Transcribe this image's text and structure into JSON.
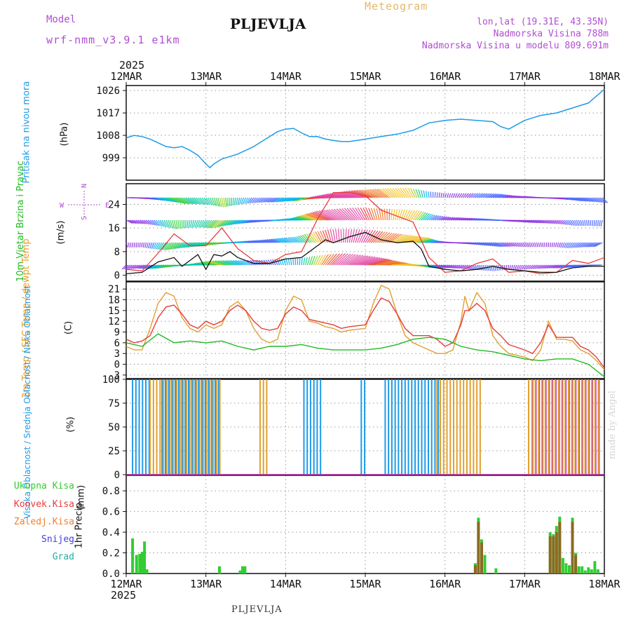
{
  "header": {
    "title": "PLJEVLJA",
    "subtitle": "Meteogram",
    "model_label": "Model",
    "model_value": "wrf-nmm_v3.9.1 e1km",
    "location_lines": [
      "lon,lat (19.31E, 43.35N)",
      "Nadmorska Visina 788m",
      "Nadmorska Visina u modelu 809.691m"
    ],
    "year_top": "2025",
    "year_bottom": "2025",
    "footer": "PLJEVLJA",
    "watermark": "made by Angel"
  },
  "wind_compass": {
    "n": "N",
    "s": "S",
    "e": "E",
    "w": "W"
  },
  "colors": {
    "pressure": "#1e9be8",
    "wind_speed": "#111111",
    "gust": "#e83c3c",
    "temp2m": "#e83c3c",
    "sfc_temp": "#e0a030",
    "dewpt": "#22bb22",
    "cloud_high": "#1e9be8",
    "cloud_mid": "#e0a030",
    "cloud_low": "#c030b0",
    "precip_total": "#33cc33",
    "precip_conv": "#e83c3c",
    "precip_frozen": "#f08030",
    "precip_snow": "#4040e0",
    "precip_hail": "#20b0a0",
    "axis_label_purple": "#b04ed0"
  },
  "chart_data": [
    {
      "type": "line",
      "panel": "pressure",
      "ylabel": "Pritisak na nivou mora",
      "unit": "(hPa)",
      "x_ticks": [
        "12MAR",
        "13MAR",
        "14MAR",
        "15MAR",
        "16MAR",
        "17MAR",
        "18MAR"
      ],
      "ylim": [
        990,
        1028
      ],
      "y_ticks": [
        999,
        1008,
        1017,
        1026
      ],
      "series": [
        {
          "x": [
            0,
            0.1,
            0.2,
            0.3,
            0.4,
            0.5,
            0.6,
            0.7,
            0.8,
            0.9,
            1.0,
            1.05,
            1.1,
            1.2,
            1.3,
            1.4,
            1.5,
            1.6,
            1.7,
            1.8,
            1.9,
            2.0,
            2.1,
            2.2,
            2.3,
            2.4,
            2.5,
            2.6,
            2.7,
            2.8,
            2.9,
            3.0,
            3.2,
            3.4,
            3.6,
            3.8,
            4.0,
            4.2,
            4.4,
            4.6,
            4.7,
            4.8,
            5.0,
            5.2,
            5.4,
            5.6,
            5.8,
            6.0
          ],
          "y": [
            1007.0,
            1008.0,
            1007.5,
            1006.5,
            1005.0,
            1003.5,
            1003.0,
            1003.5,
            1002.0,
            1000.0,
            996.5,
            995.0,
            996.5,
            998.5,
            999.5,
            1000.5,
            1002.0,
            1003.5,
            1005.5,
            1007.5,
            1009.5,
            1010.5,
            1010.8,
            1009.0,
            1007.5,
            1007.5,
            1006.5,
            1006.0,
            1005.5,
            1005.5,
            1006.0,
            1006.5,
            1007.5,
            1008.5,
            1010.0,
            1013.0,
            1014.0,
            1014.5,
            1014.0,
            1013.5,
            1011.5,
            1010.5,
            1014.0,
            1016.0,
            1017.0,
            1019.0,
            1021.0,
            1026.5
          ]
        }
      ]
    },
    {
      "type": "line",
      "panel": "wind",
      "ylabel": "10m Vjetar Brzina i Pravac",
      "unit": "(m/s)",
      "ylim": [
        -2,
        31
      ],
      "y_ticks": [
        0,
        8,
        16,
        24
      ],
      "series": [
        {
          "name": "speed",
          "x": [
            0,
            0.2,
            0.4,
            0.6,
            0.7,
            0.8,
            0.9,
            1.0,
            1.1,
            1.2,
            1.3,
            1.4,
            1.6,
            1.8,
            2.0,
            2.2,
            2.4,
            2.5,
            2.6,
            2.8,
            3.0,
            3.2,
            3.4,
            3.6,
            3.7,
            3.8,
            4.0,
            4.2,
            4.4,
            4.6,
            4.8,
            5.0,
            5.2,
            5.4,
            5.6,
            5.8,
            6.0
          ],
          "y": [
            0.5,
            1.0,
            4.5,
            6.0,
            3.0,
            5.0,
            7.0,
            2.0,
            7.0,
            6.5,
            8.0,
            6.0,
            4.0,
            4.0,
            5.5,
            6.0,
            10.0,
            12.0,
            11.0,
            13.0,
            14.5,
            12.0,
            11.0,
            11.5,
            9.0,
            3.0,
            2.0,
            1.5,
            2.0,
            3.0,
            2.0,
            1.5,
            1.0,
            1.0,
            2.5,
            3.0,
            3.0
          ]
        },
        {
          "name": "gust",
          "x": [
            0,
            0.2,
            0.4,
            0.6,
            0.8,
            1.0,
            1.2,
            1.4,
            1.6,
            1.8,
            2.0,
            2.2,
            2.4,
            2.6,
            2.8,
            3.0,
            3.2,
            3.4,
            3.6,
            3.8,
            4.0,
            4.2,
            4.4,
            4.6,
            4.8,
            5.0,
            5.2,
            5.4,
            5.6,
            5.8,
            6.0
          ],
          "y": [
            2.0,
            1.5,
            7.5,
            14.0,
            10.0,
            10.0,
            16.0,
            9.0,
            5.0,
            4.0,
            7.0,
            8.0,
            19.0,
            28.0,
            28.0,
            27.0,
            22.0,
            20.0,
            18.0,
            6.0,
            1.0,
            1.5,
            4.0,
            5.5,
            1.0,
            1.5,
            0.5,
            1.0,
            5.0,
            4.0,
            6.0
          ]
        }
      ]
    },
    {
      "type": "line",
      "panel": "temperature",
      "ylabel": "2m Temp / SFC Temp / dewpt Temp",
      "unit": "(C)",
      "ylim": [
        -4,
        23
      ],
      "y_ticks": [
        -3,
        0,
        3,
        6,
        9,
        12,
        15,
        18,
        21
      ],
      "series": [
        {
          "name": "2m Temp",
          "x": [
            0,
            0.1,
            0.2,
            0.3,
            0.4,
            0.5,
            0.6,
            0.7,
            0.8,
            0.9,
            1.0,
            1.1,
            1.2,
            1.3,
            1.4,
            1.5,
            1.6,
            1.7,
            1.8,
            1.9,
            2.0,
            2.1,
            2.2,
            2.3,
            2.4,
            2.5,
            2.6,
            2.7,
            2.8,
            3.0,
            3.1,
            3.2,
            3.3,
            3.4,
            3.5,
            3.6,
            3.7,
            3.8,
            3.9,
            4.0,
            4.1,
            4.2,
            4.25,
            4.3,
            4.4,
            4.5,
            4.6,
            4.7,
            4.8,
            5.0,
            5.1,
            5.2,
            5.3,
            5.4,
            5.5,
            5.6,
            5.7,
            5.8,
            5.9,
            6.0
          ],
          "y": [
            7,
            6,
            6.5,
            8,
            13,
            16,
            16.5,
            14,
            11,
            10,
            12,
            11,
            12,
            15,
            16.5,
            15,
            12,
            10,
            9.5,
            10,
            14,
            16,
            15,
            12.5,
            12,
            11.5,
            11,
            10,
            10.5,
            11,
            15,
            18.5,
            17.5,
            14,
            10,
            8,
            8,
            8,
            7,
            5,
            6,
            11,
            15,
            15,
            17,
            15,
            10,
            8,
            5.5,
            4,
            3,
            6,
            11,
            7.5,
            7.5,
            7.5,
            5,
            4,
            2,
            -1
          ]
        },
        {
          "name": "SFC Temp",
          "x": [
            0,
            0.1,
            0.2,
            0.3,
            0.4,
            0.5,
            0.6,
            0.7,
            0.8,
            0.9,
            1.0,
            1.1,
            1.2,
            1.3,
            1.4,
            1.5,
            1.6,
            1.7,
            1.8,
            1.9,
            2.0,
            2.1,
            2.2,
            2.3,
            2.4,
            2.5,
            2.6,
            2.7,
            2.8,
            3.0,
            3.1,
            3.2,
            3.3,
            3.4,
            3.5,
            3.6,
            3.7,
            3.8,
            3.9,
            4.0,
            4.1,
            4.2,
            4.25,
            4.3,
            4.4,
            4.5,
            4.6,
            4.7,
            4.8,
            5.0,
            5.1,
            5.2,
            5.3,
            5.4,
            5.5,
            5.6,
            5.7,
            5.8,
            5.9,
            6.0
          ],
          "y": [
            5,
            4,
            4,
            10,
            17,
            20,
            19,
            13,
            10,
            9,
            11,
            10,
            11,
            16,
            17.5,
            15,
            10,
            7,
            6,
            7,
            15,
            19,
            18,
            12,
            11.5,
            10.5,
            10,
            9,
            9.5,
            10,
            17,
            22,
            21,
            14,
            8,
            6,
            5,
            4,
            3,
            3,
            4,
            12,
            19,
            15,
            20,
            17,
            8,
            5,
            3,
            2,
            1,
            4,
            12,
            7,
            7,
            6.5,
            4,
            3,
            1,
            -1.5
          ]
        },
        {
          "name": "dewpt Temp",
          "x": [
            0,
            0.2,
            0.4,
            0.6,
            0.8,
            1.0,
            1.2,
            1.4,
            1.6,
            1.8,
            2.0,
            2.2,
            2.4,
            2.6,
            2.8,
            3.0,
            3.2,
            3.4,
            3.6,
            3.8,
            4.0,
            4.2,
            4.4,
            4.6,
            4.8,
            5.0,
            5.2,
            5.4,
            5.6,
            5.8,
            6.0
          ],
          "y": [
            6,
            5,
            8.5,
            6,
            6.5,
            6,
            6.5,
            5,
            4,
            5,
            5,
            5.5,
            4.5,
            4,
            4,
            4,
            4.5,
            5.5,
            7,
            7.5,
            7,
            5,
            4,
            3.5,
            2.5,
            1.5,
            1.0,
            1.5,
            1.5,
            0,
            -3.5
          ]
        }
      ]
    },
    {
      "type": "bar",
      "panel": "cloud",
      "ylabel": "Visoka Oblacnost / Srednja Oblacnost / Niska Oblacnost",
      "unit": "(%)",
      "ylim": [
        0,
        100
      ],
      "y_ticks": [
        0,
        25,
        50,
        75,
        100
      ],
      "spans": [
        {
          "name": "Visoka",
          "x0": 0.08,
          "x1": 0.3,
          "value": 100
        },
        {
          "name": "Srednja",
          "x0": 0.3,
          "x1": 1.18,
          "value": 100
        },
        {
          "name": "Visoka",
          "x0": 0.45,
          "x1": 1.18,
          "value": 100
        },
        {
          "name": "Srednja",
          "x0": 1.68,
          "x1": 1.8,
          "value": 100
        },
        {
          "name": "Visoka",
          "x0": 2.23,
          "x1": 2.47,
          "value": 100
        },
        {
          "name": "Visoka",
          "x0": 2.95,
          "x1": 3.0,
          "value": 100
        },
        {
          "name": "Visoka",
          "x0": 3.25,
          "x1": 3.92,
          "value": 100
        },
        {
          "name": "Srednja",
          "x0": 3.9,
          "x1": 4.45,
          "value": 100
        },
        {
          "name": "Niska",
          "x0": 5.1,
          "x1": 5.95,
          "value": 100
        },
        {
          "name": "Srednja",
          "x0": 5.05,
          "x1": 5.95,
          "value": 100
        }
      ]
    },
    {
      "type": "bar",
      "panel": "precip",
      "ylabel": "1hr Precip",
      "unit": "(mm)",
      "ylim": [
        0,
        0.95
      ],
      "y_ticks": [
        0,
        0.2,
        0.4,
        0.6,
        0.8
      ],
      "legend": [
        "Ukupna Kisa",
        "Konvek.Kisa",
        "Zaledj.Kisa",
        "Snijeg",
        "Grad"
      ],
      "series": [
        {
          "name": "Ukupna Kisa",
          "x": [
            0.08,
            0.13,
            0.17,
            0.2,
            0.23,
            0.26,
            1.17,
            1.43,
            1.46,
            1.49,
            4.38,
            4.42,
            4.46,
            4.5,
            4.64,
            5.32,
            5.36,
            5.4,
            5.44,
            5.48,
            5.52,
            5.56,
            5.6,
            5.64,
            5.68,
            5.72,
            5.76,
            5.8,
            5.84,
            5.88,
            5.92
          ],
          "y": [
            0.34,
            0.18,
            0.19,
            0.21,
            0.31,
            0.04,
            0.07,
            0.03,
            0.07,
            0.07,
            0.1,
            0.54,
            0.33,
            0.18,
            0.05,
            0.4,
            0.38,
            0.46,
            0.55,
            0.15,
            0.1,
            0.08,
            0.54,
            0.2,
            0.07,
            0.07,
            0.03,
            0.06,
            0.04,
            0.12,
            0.04
          ]
        },
        {
          "name": "Konvek.Kisa",
          "x": [
            4.38,
            4.42,
            4.46,
            5.32,
            5.36,
            5.4,
            5.44,
            5.6,
            5.64
          ],
          "y": [
            0.08,
            0.5,
            0.3,
            0.36,
            0.36,
            0.4,
            0.5,
            0.5,
            0.18
          ]
        }
      ]
    }
  ]
}
